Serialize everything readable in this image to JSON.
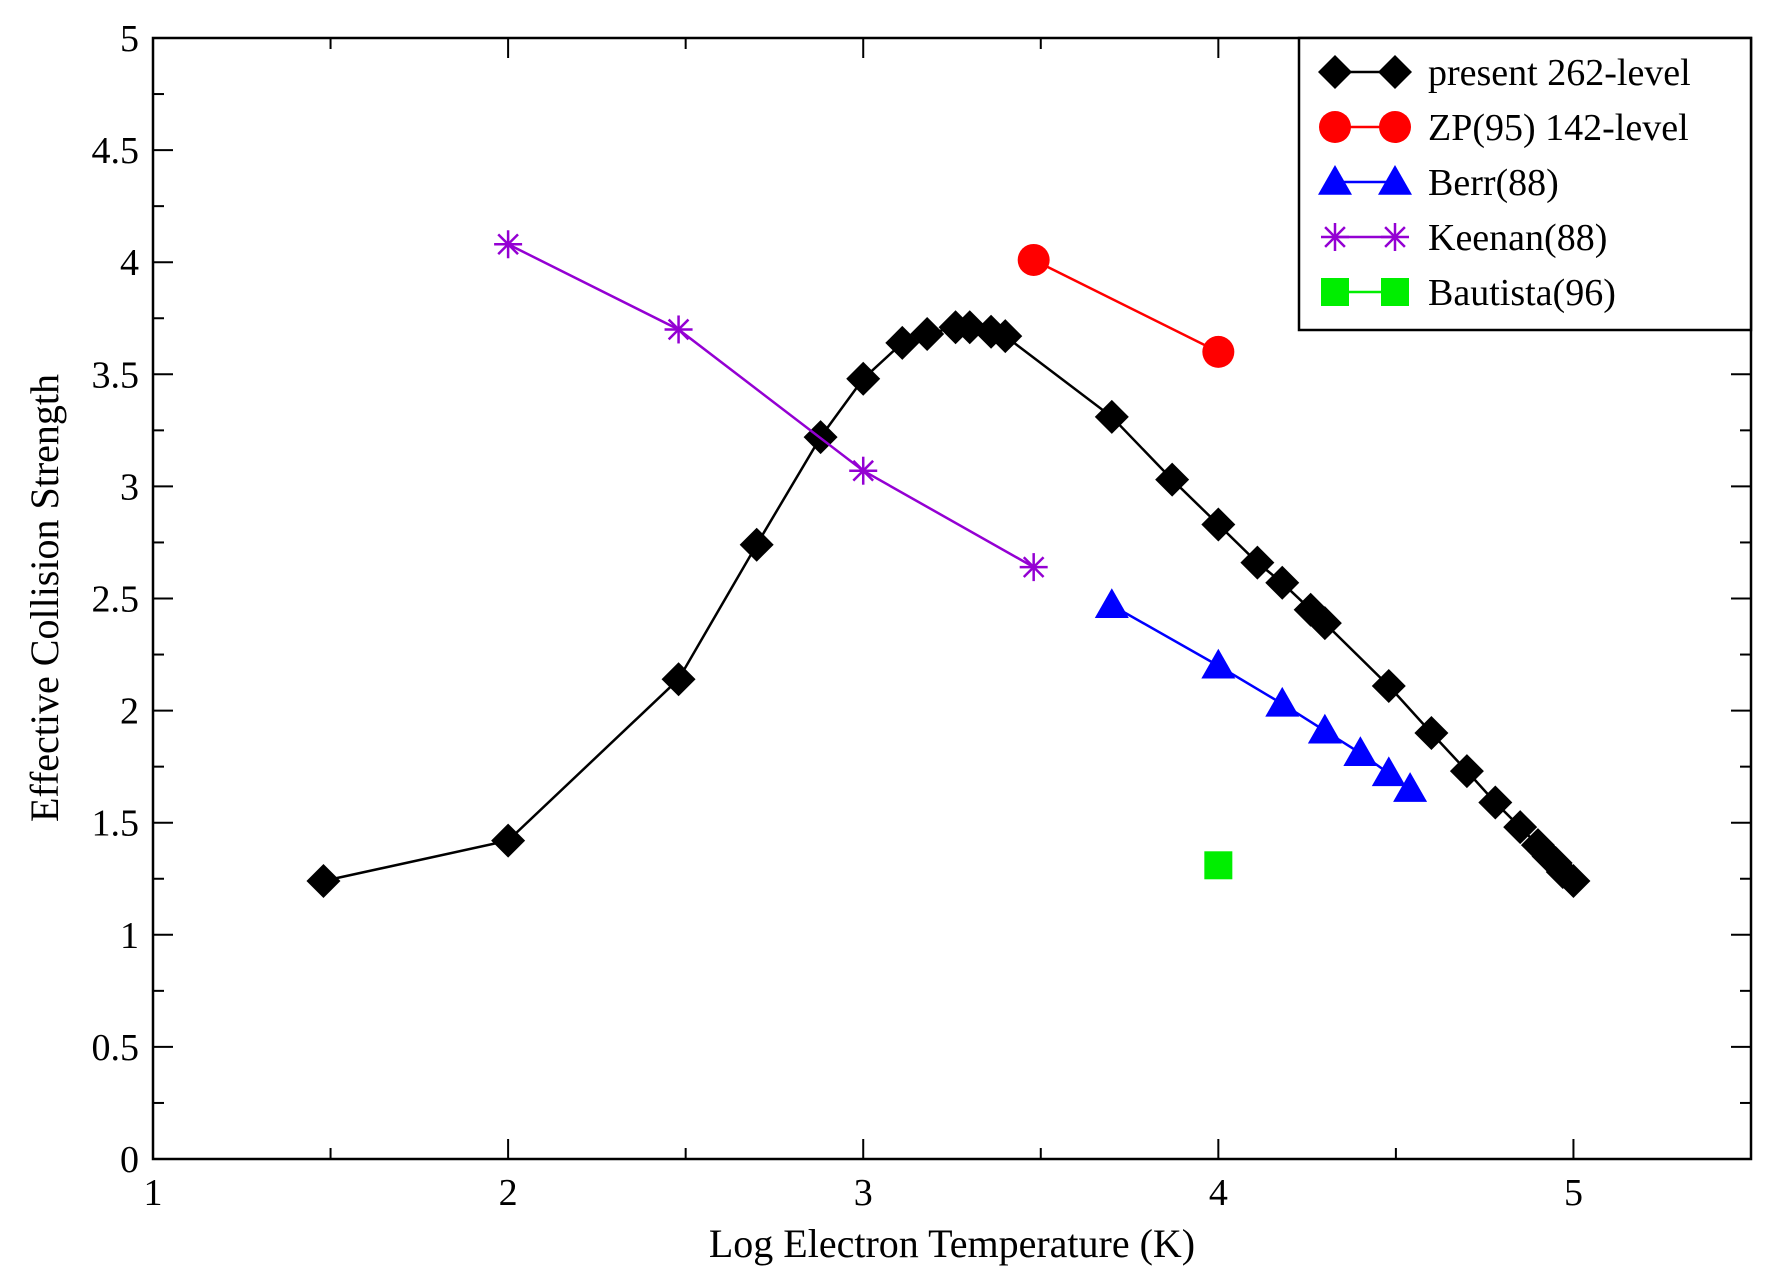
{
  "chart_data": {
    "type": "line",
    "title": "",
    "xlabel": "Log Electron Temperature (K)",
    "ylabel": "Effective Collision Strength",
    "xlim": [
      1,
      5.5
    ],
    "ylim": [
      0,
      5
    ],
    "x_ticks": [
      1,
      2,
      3,
      4,
      5
    ],
    "x_tick_labels": [
      "1",
      "2",
      "3",
      "4",
      "5"
    ],
    "y_ticks": [
      0,
      0.5,
      1,
      1.5,
      2,
      2.5,
      3,
      3.5,
      4,
      4.5,
      5
    ],
    "y_tick_labels": [
      "0",
      "0.5",
      "1",
      "1.5",
      "2",
      "2.5",
      "3",
      "3.5",
      "4",
      "4.5",
      "5"
    ],
    "grid": false,
    "legend_position": "top-right",
    "series": [
      {
        "name": "present 262-level",
        "marker": "diamond",
        "color": "#000000",
        "x": [
          1.48,
          2.0,
          2.48,
          2.7,
          2.88,
          3.0,
          3.11,
          3.18,
          3.26,
          3.3,
          3.36,
          3.4,
          3.7,
          3.87,
          4.0,
          4.11,
          4.18,
          4.26,
          4.3,
          4.48,
          4.6,
          4.7,
          4.78,
          4.85,
          4.9,
          4.93,
          4.95,
          4.97,
          5.0
        ],
        "y": [
          1.24,
          1.42,
          2.14,
          2.74,
          3.22,
          3.48,
          3.64,
          3.68,
          3.71,
          3.71,
          3.69,
          3.67,
          3.31,
          3.03,
          2.83,
          2.66,
          2.57,
          2.45,
          2.39,
          2.11,
          1.9,
          1.73,
          1.59,
          1.48,
          1.4,
          1.35,
          1.32,
          1.28,
          1.24
        ]
      },
      {
        "name": "ZP(95) 142-level",
        "marker": "circle",
        "color": "#ff0000",
        "x": [
          3.48,
          4.0
        ],
        "y": [
          4.01,
          3.6
        ]
      },
      {
        "name": "Berr(88)",
        "marker": "triangle",
        "color": "#0000ff",
        "x": [
          3.7,
          4.0,
          4.18,
          4.3,
          4.4,
          4.48,
          4.54
        ],
        "y": [
          2.47,
          2.2,
          2.03,
          1.91,
          1.81,
          1.72,
          1.65
        ]
      },
      {
        "name": "Keenan(88)",
        "marker": "asterisk",
        "color": "#9400d3",
        "x": [
          2.0,
          2.48,
          3.0,
          3.48
        ],
        "y": [
          4.08,
          3.7,
          3.07,
          2.64
        ]
      },
      {
        "name": "Bautista(96)",
        "marker": "square",
        "color": "#00ee00",
        "x": [
          4.0
        ],
        "y": [
          1.31
        ]
      }
    ]
  }
}
